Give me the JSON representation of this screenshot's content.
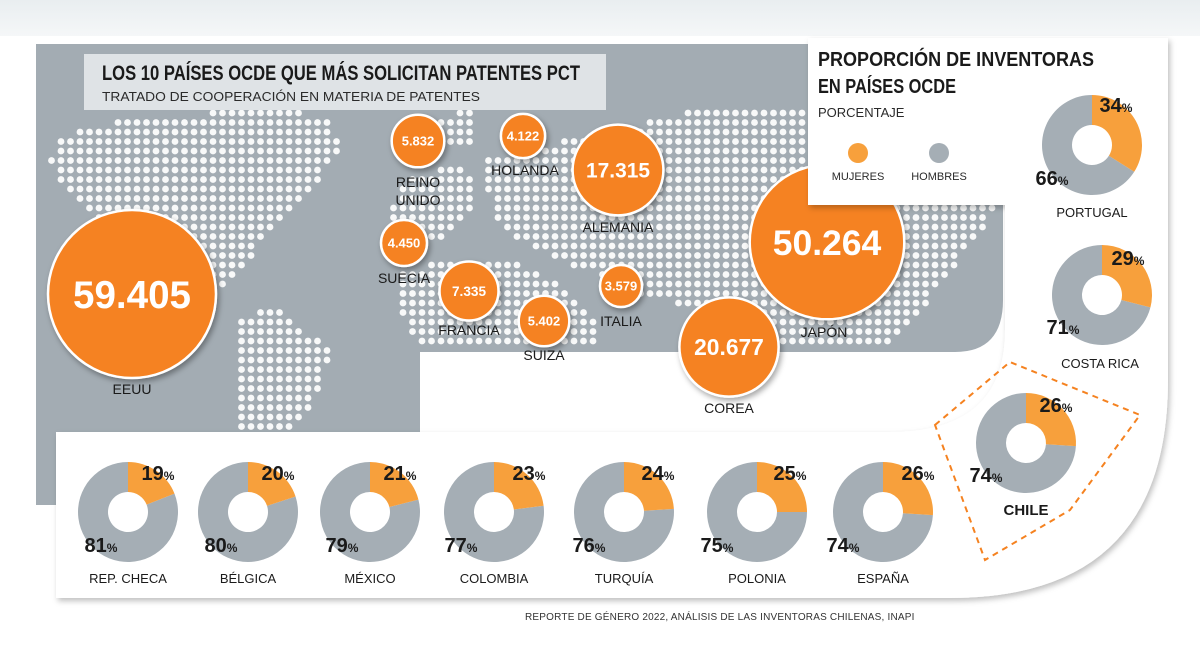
{
  "map_title": "LOS 10 PAÍSES OCDE QUE MÁS SOLICITAN PATENTES PCT",
  "map_subtitle": "TRATADO DE COOPERACIÓN EN MATERIA DE PATENTES",
  "panel_title_line1": "PROPORCIÓN DE INVENTORAS",
  "panel_title_line2": "EN PAÍSES OCDE",
  "panel_subtitle": "PORCENTAJE",
  "source": "REPORTE DE GÉNERO 2022, ANÁLISIS DE LAS INVENTORAS CHILENAS, INAPI",
  "colors": {
    "mujeres": "#f7a03c",
    "hombres": "#a5aeb5",
    "bubble": "#f58220",
    "map_bg": "#a3acb3",
    "dots": "#ffffff"
  },
  "chart_data": [
    {
      "type": "bubble",
      "title": "LOS 10 PAÍSES OCDE QUE MÁS SOLICITAN PATENTES PCT",
      "subtitle": "TRATADO DE COOPERACIÓN EN MATERIA DE PATENTES",
      "categories": [
        "EEUU",
        "JAPÓN",
        "COREA",
        "ALEMANIA",
        "FRANCIA",
        "REINO UNIDO",
        "SUIZA",
        "SUECIA",
        "HOLANDA",
        "ITALIA"
      ],
      "values": [
        59405,
        50264,
        20677,
        17315,
        7335,
        5832,
        5402,
        4450,
        4122,
        3579
      ],
      "value_labels": [
        "59.405",
        "50.264",
        "20.677",
        "17.315",
        "7.335",
        "5.832",
        "5.402",
        "4.450",
        "4.122",
        "3.579"
      ]
    },
    {
      "type": "pie",
      "title": "PROPORCIÓN DE INVENTORAS EN PAÍSES OCDE",
      "subtitle": "PORCENTAJE",
      "legend": [
        "MUJERES",
        "HOMBRES"
      ],
      "categories": [
        "PORTUGAL",
        "COSTA RICA",
        "CHILE",
        "ESPAÑA",
        "POLONIA",
        "TURQUÍA",
        "COLOMBIA",
        "MÉXICO",
        "BÉLGICA",
        "REP. CHECA"
      ],
      "series": [
        {
          "name": "MUJERES",
          "values": [
            34,
            29,
            26,
            26,
            25,
            24,
            23,
            21,
            20,
            19
          ]
        },
        {
          "name": "HOMBRES",
          "values": [
            66,
            71,
            74,
            74,
            75,
            76,
            77,
            79,
            80,
            81
          ]
        }
      ]
    }
  ]
}
